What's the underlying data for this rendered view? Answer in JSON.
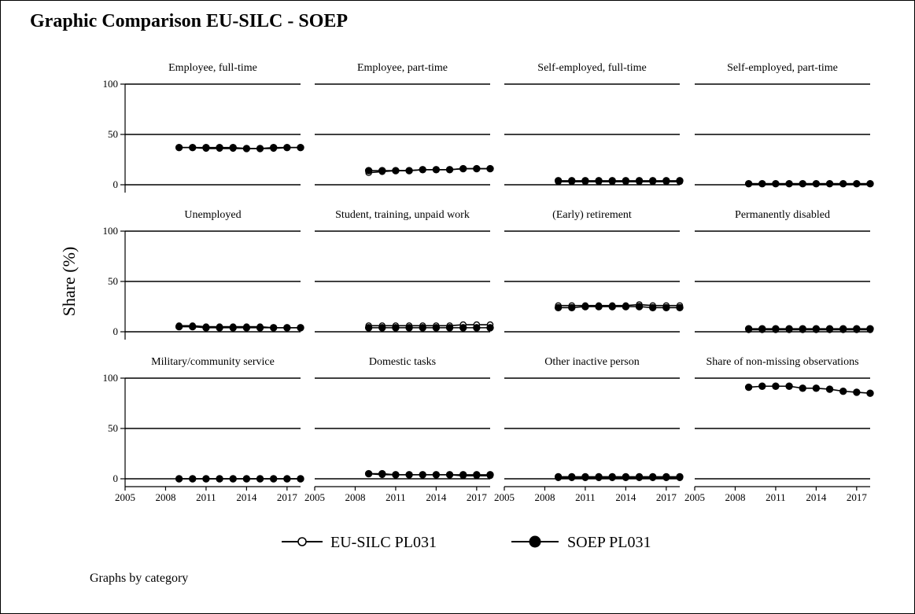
{
  "title": "Graphic Comparison EU-SILC - SOEP",
  "note": "Graphs by category",
  "chart_data": {
    "type": "line",
    "ylabel": "Share (%)",
    "xlabel": "",
    "xlim": [
      2005,
      2018
    ],
    "ylim": [
      0,
      100
    ],
    "xticks": [
      "2005",
      "2008",
      "2011",
      "2014",
      "2017"
    ],
    "yticks": [
      "0",
      "50",
      "100"
    ],
    "grid": true,
    "legend_position": "bottom",
    "legend": [
      "EU-SILC PL031",
      "SOEP PL031"
    ],
    "x": [
      2009,
      2010,
      2011,
      2012,
      2013,
      2014,
      2015,
      2016,
      2017,
      2018
    ],
    "panels": [
      {
        "title": "Employee, full-time",
        "series": [
          {
            "name": "EU-SILC PL031",
            "marker": "hollow",
            "values": [
              37,
              37,
              36,
              36,
              36,
              36,
              36,
              36,
              37,
              37
            ]
          },
          {
            "name": "SOEP PL031",
            "marker": "filled",
            "values": [
              37,
              37,
              37,
              37,
              37,
              36,
              36,
              37,
              37,
              37
            ]
          }
        ]
      },
      {
        "title": "Employee, part-time",
        "series": [
          {
            "name": "EU-SILC PL031",
            "marker": "hollow",
            "values": [
              12,
              13,
              14,
              14,
              15,
              15,
              15,
              16,
              16,
              16
            ]
          },
          {
            "name": "SOEP PL031",
            "marker": "filled",
            "values": [
              14,
              14,
              14,
              14,
              15,
              15,
              15,
              16,
              16,
              16
            ]
          }
        ]
      },
      {
        "title": "Self-employed, full-time",
        "series": [
          {
            "name": "EU-SILC PL031",
            "marker": "hollow",
            "values": [
              3,
              3,
              3,
              3,
              3,
              3,
              3,
              3,
              3,
              3
            ]
          },
          {
            "name": "SOEP PL031",
            "marker": "filled",
            "values": [
              4,
              4,
              4,
              4,
              4,
              4,
              4,
              4,
              4,
              4
            ]
          }
        ]
      },
      {
        "title": "Self-employed, part-time",
        "series": [
          {
            "name": "EU-SILC PL031",
            "marker": "hollow",
            "values": [
              1,
              1,
              1,
              1,
              1,
              1,
              1,
              1,
              1,
              1
            ]
          },
          {
            "name": "SOEP PL031",
            "marker": "filled",
            "values": [
              1,
              1,
              1,
              1,
              1,
              1,
              1,
              1,
              1,
              1
            ]
          }
        ]
      },
      {
        "title": "Unemployed",
        "series": [
          {
            "name": "EU-SILC PL031",
            "marker": "hollow",
            "values": [
              6,
              6,
              5,
              5,
              5,
              5,
              5,
              4,
              4,
              4
            ]
          },
          {
            "name": "SOEP PL031",
            "marker": "filled",
            "values": [
              5,
              5,
              4,
              4,
              4,
              4,
              4,
              4,
              4,
              4
            ]
          }
        ]
      },
      {
        "title": "Student, training, unpaid work",
        "series": [
          {
            "name": "EU-SILC PL031",
            "marker": "hollow",
            "values": [
              6,
              6,
              6,
              6,
              6,
              6,
              6,
              7,
              7,
              7
            ]
          },
          {
            "name": "SOEP PL031",
            "marker": "filled",
            "values": [
              4,
              4,
              4,
              4,
              4,
              4,
              4,
              4,
              4,
              4
            ]
          }
        ]
      },
      {
        "title": "(Early) retirement",
        "series": [
          {
            "name": "EU-SILC PL031",
            "marker": "hollow",
            "values": [
              26,
              26,
              26,
              26,
              26,
              26,
              27,
              26,
              26,
              26
            ]
          },
          {
            "name": "SOEP PL031",
            "marker": "filled",
            "values": [
              24,
              24,
              25,
              25,
              25,
              25,
              25,
              24,
              24,
              24
            ]
          }
        ]
      },
      {
        "title": "Permanently disabled",
        "series": [
          {
            "name": "EU-SILC PL031",
            "marker": "hollow",
            "values": [
              2,
              2,
              2,
              2,
              2,
              2,
              2,
              2,
              2,
              2
            ]
          },
          {
            "name": "SOEP PL031",
            "marker": "filled",
            "values": [
              3,
              3,
              3,
              3,
              3,
              3,
              3,
              3,
              3,
              3
            ]
          }
        ]
      },
      {
        "title": "Military/community service",
        "series": [
          {
            "name": "EU-SILC PL031",
            "marker": "hollow",
            "values": [
              0,
              0,
              0,
              0,
              0,
              0,
              0,
              0,
              0,
              0
            ]
          },
          {
            "name": "SOEP PL031",
            "marker": "filled",
            "values": [
              0,
              0,
              0,
              0,
              0,
              0,
              0,
              0,
              0,
              0
            ]
          }
        ]
      },
      {
        "title": "Domestic tasks",
        "series": [
          {
            "name": "EU-SILC PL031",
            "marker": "hollow",
            "values": [
              5,
              4,
              4,
              4,
              4,
              4,
              4,
              3,
              3,
              3
            ]
          },
          {
            "name": "SOEP PL031",
            "marker": "filled",
            "values": [
              5,
              5,
              4,
              4,
              4,
              4,
              4,
              4,
              4,
              4
            ]
          }
        ]
      },
      {
        "title": "Other inactive person",
        "series": [
          {
            "name": "EU-SILC PL031",
            "marker": "hollow",
            "values": [
              1,
              1,
              1,
              1,
              1,
              1,
              1,
              1,
              1,
              1
            ]
          },
          {
            "name": "SOEP PL031",
            "marker": "filled",
            "values": [
              2,
              2,
              2,
              2,
              2,
              2,
              2,
              2,
              2,
              2
            ]
          }
        ]
      },
      {
        "title": "Share of non-missing observations",
        "series": [
          {
            "name": "SOEP PL031",
            "marker": "filled",
            "values": [
              91,
              92,
              92,
              92,
              90,
              90,
              89,
              87,
              86,
              85
            ]
          }
        ]
      }
    ]
  }
}
